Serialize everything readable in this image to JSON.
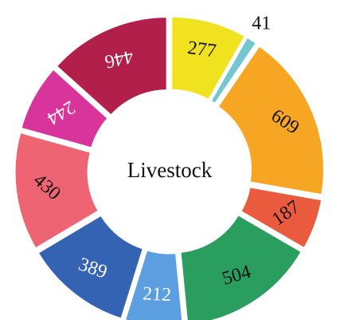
{
  "chart_data": {
    "type": "donut",
    "center_label": "Livestock",
    "values": [
      277,
      41,
      609,
      187,
      504,
      212,
      389,
      430,
      244,
      446
    ],
    "colors": [
      "#f1e21f",
      "#74c7d0",
      "#f6a623",
      "#ea5a3d",
      "#2a9e5e",
      "#5b9fe0",
      "#3463b3",
      "#ef6472",
      "#d9339c",
      "#b21f4a"
    ],
    "label_colors": [
      "#111111",
      "#111111",
      "#111111",
      "#111111",
      "#111111",
      "#ffffff",
      "#ffffff",
      "#111111",
      "#ffffff",
      "#ffffff"
    ]
  }
}
